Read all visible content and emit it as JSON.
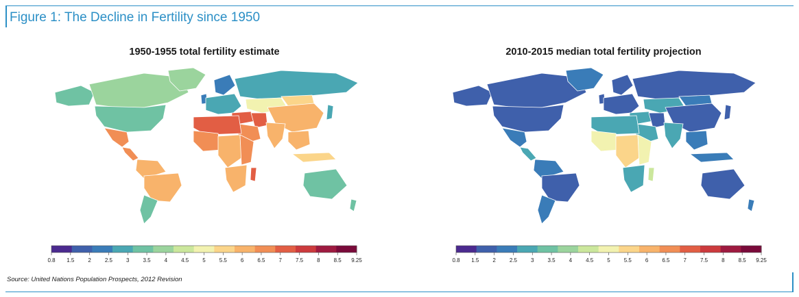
{
  "figure": {
    "title": "Figure 1: The Decline in Fertility since 1950",
    "source": "Source: United Nations Population Prospects, 2012 Revision"
  },
  "colors": {
    "frame": "#2b8fc6",
    "scale": [
      "#4b2a8f",
      "#3f60ab",
      "#3a7cb8",
      "#4aa7b3",
      "#6fc2a3",
      "#9bd49d",
      "#cbe79c",
      "#f2f2b0",
      "#fbd58a",
      "#f8b36b",
      "#f18e55",
      "#e25e44",
      "#cc3a3d",
      "#9e1a40",
      "#7a0a3a"
    ]
  },
  "legend": {
    "ticks": [
      "0.8",
      "1.5",
      "2",
      "2.5",
      "3",
      "3.5",
      "4",
      "4.5",
      "5",
      "5.5",
      "6",
      "6.5",
      "7",
      "7.5",
      "8",
      "8.5",
      "9.25"
    ]
  },
  "maps": [
    {
      "title": "1950-1955 total fertility estimate",
      "regions": {
        "north_america": 3.5,
        "canada": 3.8,
        "greenland": 4.0,
        "alaska": 3.5,
        "mexico": 6.8,
        "central_america": 6.8,
        "south_america": 6.0,
        "brazil": 6.1,
        "argentina": 3.2,
        "europe": 2.6,
        "scandinavia": 2.4,
        "uk": 2.2,
        "russia": 2.9,
        "central_asia": 4.8,
        "china": 6.0,
        "mongolia": 5.6,
        "north_africa": 7.2,
        "west_africa": 6.6,
        "central_africa": 6.2,
        "east_africa": 6.8,
        "southern_africa": 6.1,
        "madagascar": 7.0,
        "middle_east": 7.1,
        "arabia": 6.9,
        "iran": 7.0,
        "india": 5.9,
        "southeast_asia": 6.2,
        "japan": 2.8,
        "indonesia": 5.6,
        "australia": 3.2,
        "new_zealand": 3.6
      }
    },
    {
      "title": "2010-2015 median total fertility projection",
      "regions": {
        "north_america": 1.9,
        "canada": 1.6,
        "greenland": 2.1,
        "alaska": 1.9,
        "mexico": 2.2,
        "central_america": 2.5,
        "south_america": 2.2,
        "brazil": 1.8,
        "argentina": 2.2,
        "europe": 1.5,
        "scandinavia": 1.9,
        "uk": 1.9,
        "russia": 1.5,
        "central_asia": 2.5,
        "china": 1.6,
        "mongolia": 2.4,
        "north_africa": 2.8,
        "west_africa": 5.2,
        "central_africa": 5.4,
        "east_africa": 4.8,
        "southern_africa": 2.8,
        "madagascar": 4.5,
        "middle_east": 2.9,
        "arabia": 2.8,
        "iran": 1.9,
        "india": 2.5,
        "southeast_asia": 2.1,
        "japan": 1.4,
        "indonesia": 2.4,
        "australia": 1.9,
        "new_zealand": 2.1
      }
    }
  ]
}
